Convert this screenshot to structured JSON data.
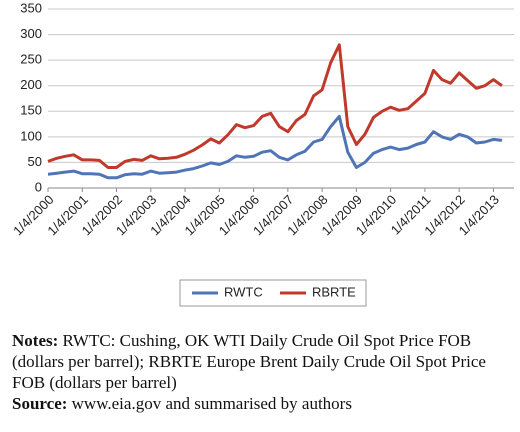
{
  "chart_data": {
    "type": "line",
    "x": [
      2000,
      2000.25,
      2000.5,
      2000.75,
      2001,
      2001.25,
      2001.5,
      2001.75,
      2002,
      2002.25,
      2002.5,
      2002.75,
      2003,
      2003.25,
      2003.5,
      2003.75,
      2004,
      2004.25,
      2004.5,
      2004.75,
      2005,
      2005.25,
      2005.5,
      2005.75,
      2006,
      2006.25,
      2006.5,
      2006.75,
      2007,
      2007.25,
      2007.5,
      2007.75,
      2008,
      2008.25,
      2008.5,
      2008.75,
      2009,
      2009.25,
      2009.5,
      2009.75,
      2010,
      2010.25,
      2010.5,
      2010.75,
      2011,
      2011.25,
      2011.5,
      2011.75,
      2012,
      2012.25,
      2012.5,
      2012.75,
      2013,
      2013.25
    ],
    "series": [
      {
        "name": "RWTC",
        "color": "#4f75b8",
        "values": [
          27,
          29,
          31,
          33,
          28,
          28,
          27,
          20,
          20,
          26,
          28,
          27,
          33,
          29,
          30,
          31,
          35,
          38,
          43,
          49,
          46,
          52,
          63,
          60,
          62,
          70,
          73,
          60,
          55,
          65,
          72,
          90,
          95,
          120,
          140,
          70,
          40,
          50,
          68,
          75,
          80,
          75,
          78,
          85,
          90,
          110,
          100,
          95,
          105,
          100,
          88,
          90,
          95,
          93
        ]
      },
      {
        "name": "RBRTE",
        "color": "#c0392b",
        "values": [
          52,
          58,
          62,
          65,
          55,
          55,
          54,
          40,
          40,
          52,
          56,
          54,
          63,
          57,
          58,
          60,
          66,
          74,
          84,
          96,
          88,
          104,
          124,
          118,
          122,
          140,
          146,
          120,
          110,
          132,
          144,
          180,
          192,
          245,
          280,
          120,
          85,
          105,
          138,
          150,
          158,
          152,
          155,
          170,
          185,
          230,
          212,
          205,
          225,
          210,
          195,
          200,
          212,
          200
        ]
      }
    ],
    "xlim": [
      2000,
      2013.6
    ],
    "xticks": [
      {
        "value": 2000,
        "label": "1/4/2000"
      },
      {
        "value": 2001,
        "label": "1/4/2001"
      },
      {
        "value": 2002,
        "label": "1/4/2002"
      },
      {
        "value": 2003,
        "label": "1/4/2003"
      },
      {
        "value": 2004,
        "label": "1/4/2004"
      },
      {
        "value": 2005,
        "label": "1/4/2005"
      },
      {
        "value": 2006,
        "label": "1/4/2006"
      },
      {
        "value": 2007,
        "label": "1/4/2007"
      },
      {
        "value": 2008,
        "label": "1/4/2008"
      },
      {
        "value": 2009,
        "label": "1/4/2009"
      },
      {
        "value": 2010,
        "label": "1/4/2010"
      },
      {
        "value": 2011,
        "label": "1/4/2011"
      },
      {
        "value": 2012,
        "label": "1/4/2012"
      },
      {
        "value": 2013,
        "label": "1/4/2013"
      }
    ],
    "ylim": [
      0,
      350
    ],
    "yticks": [
      0,
      50,
      100,
      150,
      200,
      250,
      300,
      350
    ],
    "grid": true
  },
  "notes": {
    "label": "Notes:",
    "text": "RWTC: Cushing, OK WTI Daily Crude Oil Spot Price FOB (dollars per barrel); RBRTE Europe Brent Daily Crude Oil Spot Price FOB (dollars per barrel)"
  },
  "source": {
    "label": "Source:",
    "text": "www.eia.gov and summarised by authors"
  }
}
